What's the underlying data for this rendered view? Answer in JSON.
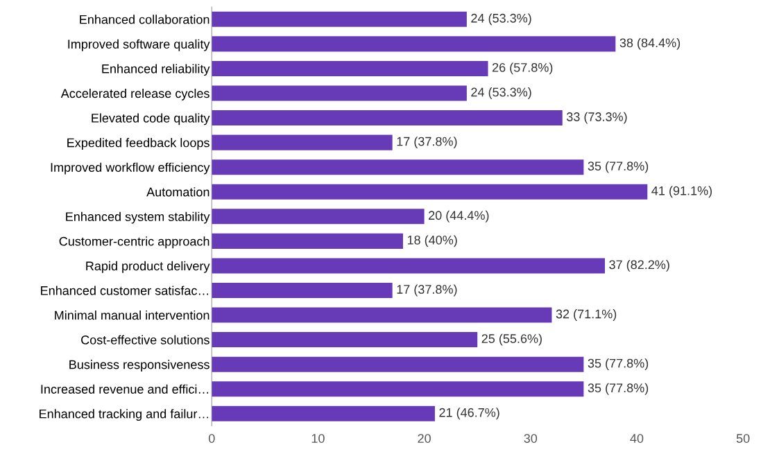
{
  "chart_data": {
    "type": "bar",
    "orientation": "horizontal",
    "categories": [
      "Enhanced collaboration",
      "Improved software quality",
      "Enhanced reliability",
      "Accelerated release cycles",
      "Elevated code quality",
      "Expedited feedback loops",
      "Improved workflow efficiency",
      "Automation",
      "Enhanced system stability",
      "Customer-centric approach",
      "Rapid product delivery",
      "Enhanced customer satisfac…",
      "Minimal manual intervention",
      "Cost-effective solutions",
      "Business responsiveness",
      "Increased revenue and effici…",
      "Enhanced tracking and failur…"
    ],
    "values": [
      24,
      38,
      26,
      24,
      33,
      17,
      35,
      41,
      20,
      18,
      37,
      17,
      32,
      25,
      35,
      35,
      21
    ],
    "value_labels": [
      "24 (53.3%)",
      "38 (84.4%)",
      "26 (57.8%)",
      "24 (53.3%)",
      "33 (73.3%)",
      "17 (37.8%)",
      "35 (77.8%)",
      "41 (91.1%)",
      "20 (44.4%)",
      "18 (40%)",
      "37 (82.2%)",
      "17 (37.8%)",
      "32 (71.1%)",
      "25 (55.6%)",
      "35 (77.8%)",
      "35 (77.8%)",
      "21 (46.7%)"
    ],
    "color": "#673ab7",
    "xlim": [
      0,
      50
    ],
    "xticks": [
      0,
      10,
      20,
      30,
      40,
      50
    ],
    "grid": false
  }
}
